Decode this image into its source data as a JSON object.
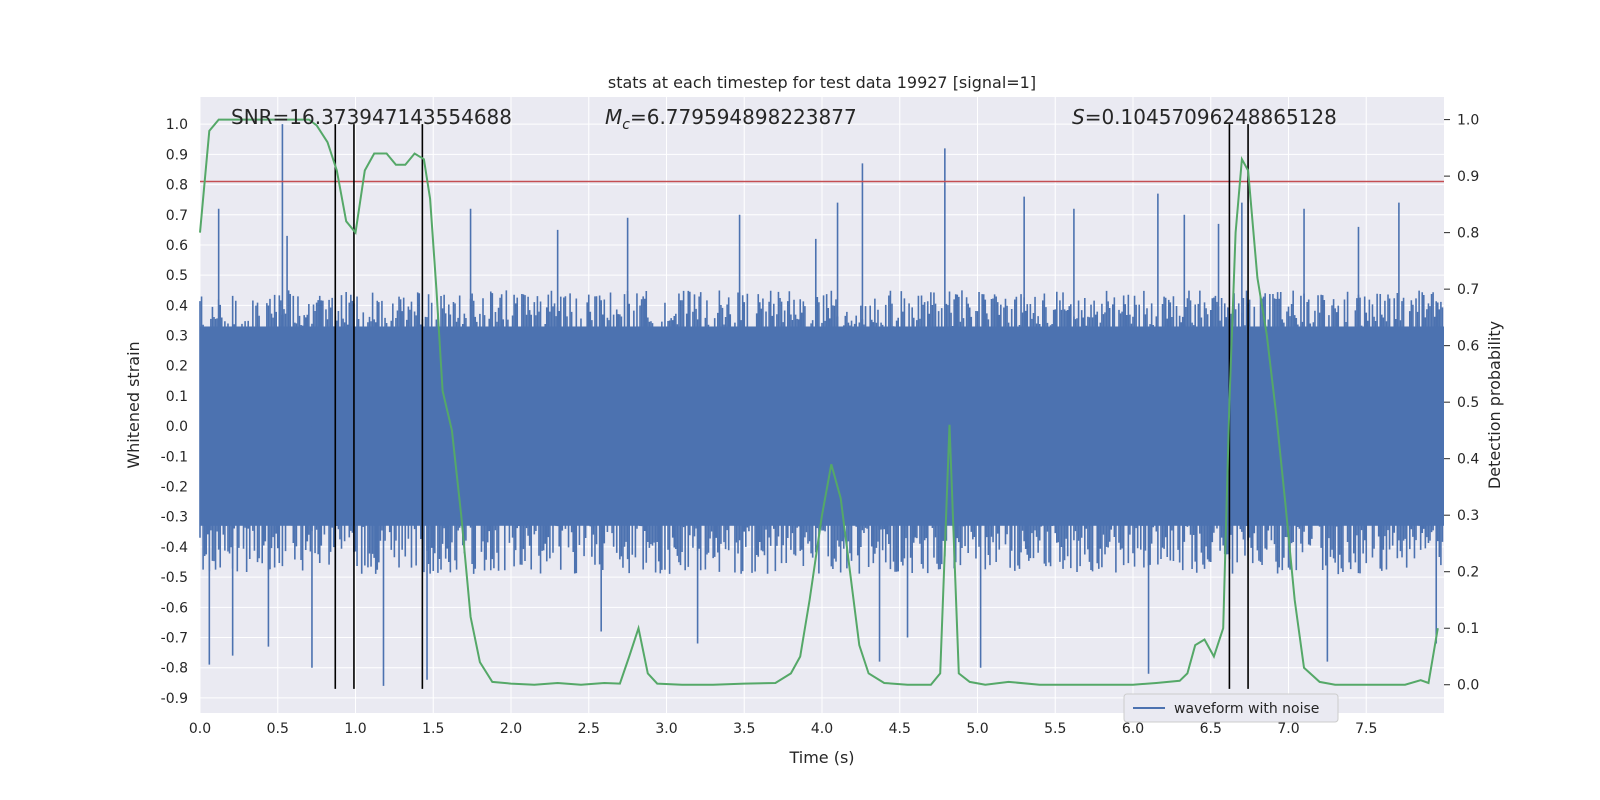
{
  "chart_data": {
    "type": "line",
    "title": "stats at each timestep for test data 19927 [signal=1]",
    "xlabel": "Time (s)",
    "ylabel_left": "Whitened strain",
    "ylabel_right": "Detection probability",
    "xlim": [
      0,
      8
    ],
    "ylim_left": [
      -0.95,
      1.09
    ],
    "ylim_right": [
      -0.05,
      1.04
    ],
    "x_ticks": [
      "0.0",
      "0.5",
      "1.0",
      "1.5",
      "2.0",
      "2.5",
      "3.0",
      "3.5",
      "4.0",
      "4.5",
      "5.0",
      "5.5",
      "6.0",
      "6.5",
      "7.0",
      "7.5"
    ],
    "y_ticks_left": [
      "-0.9",
      "-0.8",
      "-0.7",
      "-0.6",
      "-0.5",
      "-0.4",
      "-0.3",
      "-0.2",
      "-0.1",
      "0.0",
      "0.1",
      "0.2",
      "0.3",
      "0.4",
      "0.5",
      "0.6",
      "0.7",
      "0.8",
      "0.9",
      "1.0"
    ],
    "y_ticks_right": [
      "0.0",
      "0.1",
      "0.2",
      "0.3",
      "0.4",
      "0.5",
      "0.6",
      "0.7",
      "0.8",
      "0.9",
      "1.0"
    ],
    "grid": true,
    "annotations": {
      "snr": "SNR=16.373947143554688",
      "mc_symbol": "M",
      "mc_sub": "c",
      "mc_value": "=6.779594898223877",
      "s_symbol": "S",
      "s_value": "=0.10457096248865128"
    },
    "threshold_left": 0.81,
    "vertical_lines_x": [
      0.87,
      0.99,
      1.43,
      6.62,
      6.74
    ],
    "legend": {
      "label": "waveform with noise",
      "loc": "lower right"
    },
    "series": [
      {
        "name": "waveform with noise",
        "axis": "left",
        "style": "dense-noise",
        "core_envelope": 0.29,
        "sample_count": 800,
        "spikes": [
          {
            "x": 0.53,
            "y": 1.0
          },
          {
            "x": 0.56,
            "y": 0.63
          },
          {
            "x": 0.12,
            "y": 0.72
          },
          {
            "x": 0.06,
            "y": -0.79
          },
          {
            "x": 0.21,
            "y": -0.76
          },
          {
            "x": 0.44,
            "y": -0.73
          },
          {
            "x": 0.72,
            "y": -0.8
          },
          {
            "x": 1.18,
            "y": -0.86
          },
          {
            "x": 1.46,
            "y": -0.84
          },
          {
            "x": 1.29,
            "y": 0.42
          },
          {
            "x": 1.41,
            "y": 0.44
          },
          {
            "x": 1.74,
            "y": 0.72
          },
          {
            "x": 2.3,
            "y": 0.65
          },
          {
            "x": 2.75,
            "y": 0.69
          },
          {
            "x": 2.58,
            "y": -0.68
          },
          {
            "x": 3.2,
            "y": -0.72
          },
          {
            "x": 3.47,
            "y": 0.7
          },
          {
            "x": 3.96,
            "y": 0.62
          },
          {
            "x": 4.1,
            "y": 0.74
          },
          {
            "x": 4.26,
            "y": 0.87
          },
          {
            "x": 4.37,
            "y": -0.78
          },
          {
            "x": 4.79,
            "y": 0.92
          },
          {
            "x": 4.55,
            "y": -0.7
          },
          {
            "x": 5.02,
            "y": -0.8
          },
          {
            "x": 5.3,
            "y": 0.76
          },
          {
            "x": 5.62,
            "y": 0.72
          },
          {
            "x": 6.16,
            "y": 0.77
          },
          {
            "x": 6.1,
            "y": -0.82
          },
          {
            "x": 6.33,
            "y": 0.7
          },
          {
            "x": 6.55,
            "y": 0.67
          },
          {
            "x": 6.7,
            "y": 0.74
          },
          {
            "x": 7.1,
            "y": 0.72
          },
          {
            "x": 7.25,
            "y": -0.78
          },
          {
            "x": 7.45,
            "y": 0.66
          },
          {
            "x": 7.71,
            "y": 0.74
          },
          {
            "x": 7.95,
            "y": -0.72
          }
        ]
      },
      {
        "name": "detection probability",
        "axis": "right",
        "style": "line",
        "color": "#55a868",
        "x": [
          0.0,
          0.06,
          0.12,
          0.2,
          0.3,
          0.4,
          0.5,
          0.6,
          0.7,
          0.75,
          0.82,
          0.88,
          0.94,
          1.0,
          1.06,
          1.12,
          1.2,
          1.26,
          1.32,
          1.38,
          1.44,
          1.48,
          1.52,
          1.56,
          1.62,
          1.68,
          1.74,
          1.8,
          1.88,
          2.0,
          2.15,
          2.3,
          2.45,
          2.6,
          2.7,
          2.76,
          2.82,
          2.88,
          2.94,
          3.1,
          3.3,
          3.5,
          3.7,
          3.8,
          3.86,
          3.92,
          4.0,
          4.06,
          4.12,
          4.18,
          4.24,
          4.3,
          4.4,
          4.55,
          4.7,
          4.76,
          4.82,
          4.88,
          4.95,
          5.05,
          5.2,
          5.4,
          5.6,
          5.8,
          6.0,
          6.15,
          6.3,
          6.35,
          6.4,
          6.46,
          6.52,
          6.58,
          6.62,
          6.66,
          6.7,
          6.74,
          6.8,
          6.86,
          6.92,
          6.98,
          7.04,
          7.1,
          7.2,
          7.3,
          7.45,
          7.6,
          7.75,
          7.85,
          7.9,
          7.96
        ],
        "values": [
          0.8,
          0.98,
          1.0,
          1.0,
          1.0,
          1.0,
          1.0,
          1.0,
          1.0,
          0.99,
          0.96,
          0.91,
          0.82,
          0.8,
          0.91,
          0.94,
          0.94,
          0.92,
          0.92,
          0.94,
          0.93,
          0.86,
          0.7,
          0.52,
          0.45,
          0.3,
          0.12,
          0.04,
          0.005,
          0.002,
          0.0,
          0.003,
          0.0,
          0.003,
          0.002,
          0.05,
          0.1,
          0.02,
          0.002,
          0.0,
          0.0,
          0.002,
          0.003,
          0.02,
          0.05,
          0.15,
          0.3,
          0.39,
          0.33,
          0.2,
          0.07,
          0.02,
          0.003,
          0.0,
          0.0,
          0.02,
          0.46,
          0.02,
          0.005,
          0.0,
          0.005,
          0.0,
          0.0,
          0.0,
          0.0,
          0.003,
          0.007,
          0.02,
          0.07,
          0.08,
          0.05,
          0.1,
          0.5,
          0.8,
          0.93,
          0.91,
          0.72,
          0.62,
          0.48,
          0.32,
          0.15,
          0.03,
          0.005,
          0.0,
          0.0,
          0.0,
          0.0,
          0.008,
          0.003,
          0.1
        ]
      }
    ]
  }
}
